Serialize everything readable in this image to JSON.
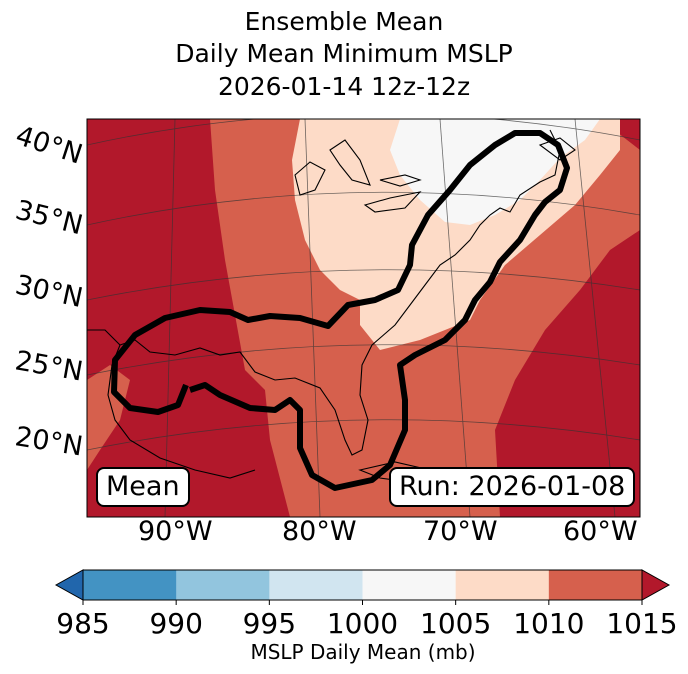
{
  "title": {
    "line1": "Ensemble Mean",
    "line2": "Daily Mean Minimum MSLP",
    "line3": "2026-01-14 12z-12z"
  },
  "map": {
    "lat_labels": [
      "40°N",
      "35°N",
      "30°N",
      "25°N",
      "20°N"
    ],
    "lon_labels": [
      "90°W",
      "80°W",
      "70°W",
      "60°W"
    ],
    "badge_left": "Mean",
    "badge_right": "Run: 2026-01-08",
    "fill_colors": {
      "band_1000_1005": "#f7f7f7",
      "band_1005_1010": "#fddbc7",
      "band_1010_1015": "#d6604d",
      "band_above_1015": "#b2182b"
    },
    "contour_color": "#000000"
  },
  "colorbar": {
    "ticks": [
      "985",
      "990",
      "995",
      "1000",
      "1005",
      "1010",
      "1015"
    ],
    "colors": [
      "#2166ac",
      "#4393c3",
      "#92c5de",
      "#d1e5f0",
      "#f7f7f7",
      "#fddbc7",
      "#d6604d",
      "#b2182b"
    ],
    "extend": "both",
    "label": "MSLP Daily Mean (mb)"
  }
}
